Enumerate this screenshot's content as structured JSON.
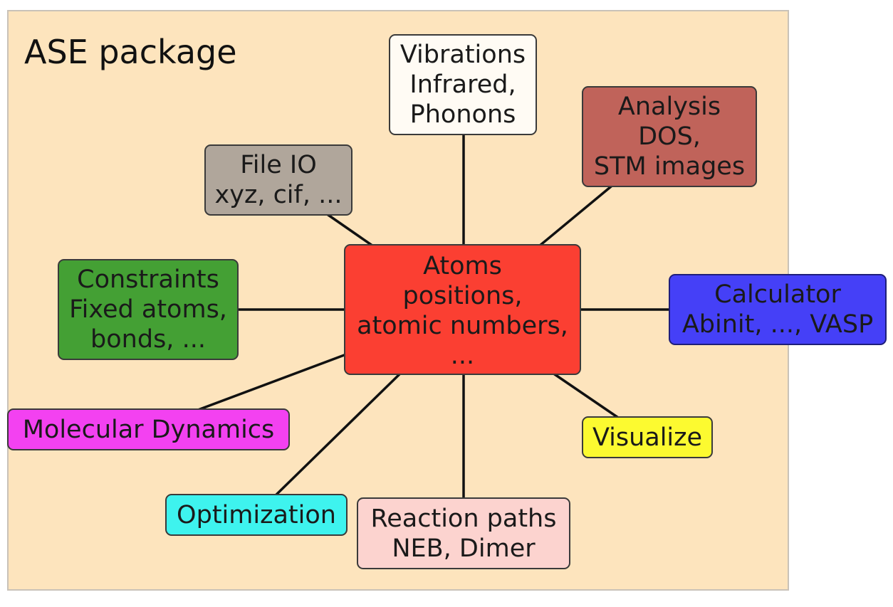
{
  "title": "ASE package",
  "nodes": {
    "atoms": {
      "lines": [
        "Atoms",
        "positions,",
        "atomic numbers,",
        "..."
      ],
      "color": "#fb3f32"
    },
    "vibrations": {
      "lines": [
        "Vibrations",
        "Infrared,",
        "Phonons"
      ],
      "color": "#fffbf4"
    },
    "analysis": {
      "lines": [
        "Analysis",
        "DOS,",
        "STM images"
      ],
      "color": "#c0635a"
    },
    "fileio": {
      "lines": [
        "File IO",
        "xyz, cif, ..."
      ],
      "color": "#b0a69b"
    },
    "constraints": {
      "lines": [
        "Constraints",
        "Fixed atoms,",
        "bonds, ..."
      ],
      "color": "#44a034"
    },
    "calculator": {
      "lines": [
        "Calculator",
        "Abinit, ..., VASP"
      ],
      "color": "#4540f7"
    },
    "md": {
      "lines": [
        "Molecular Dynamics"
      ],
      "color": "#f341f1"
    },
    "visualize": {
      "lines": [
        "Visualize"
      ],
      "color": "#fcfa30"
    },
    "optimization": {
      "lines": [
        "Optimization"
      ],
      "color": "#3ef3ee"
    },
    "reaction": {
      "lines": [
        "Reaction paths",
        "NEB, Dimer"
      ],
      "color": "#fcd3cf"
    }
  }
}
